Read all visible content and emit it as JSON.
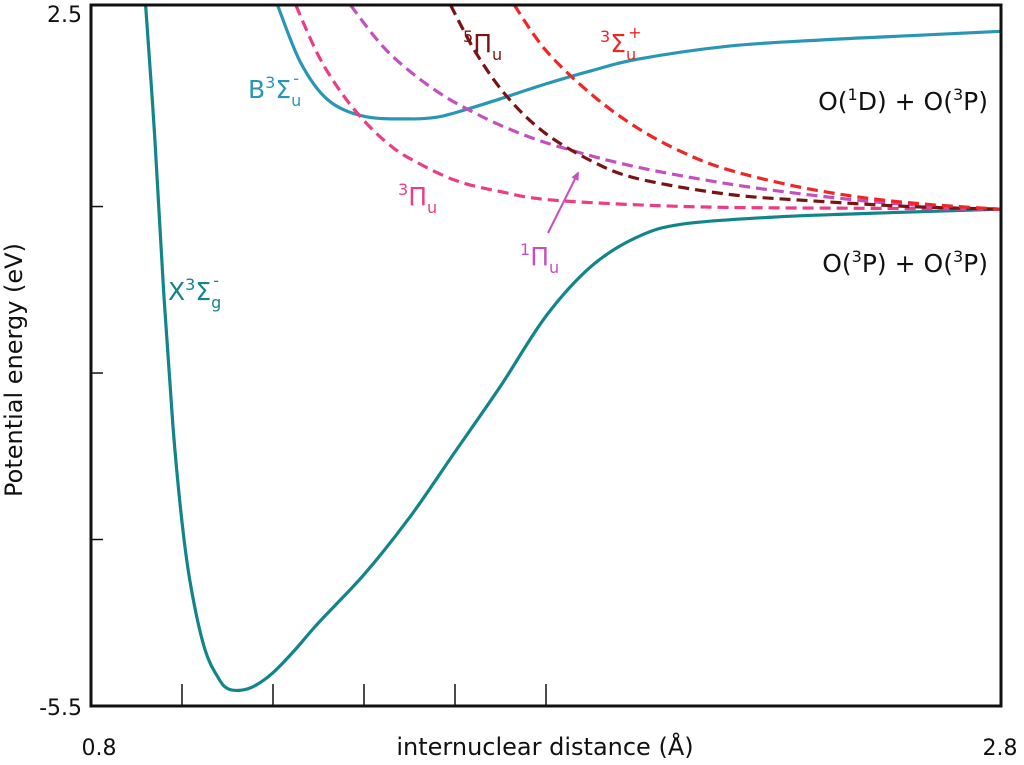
{
  "chart_data": {
    "type": "line",
    "title": "",
    "xlabel": "internuclear distance (Å)",
    "ylabel": "Potential energy (eV)",
    "xlim": [
      0.8,
      2.8
    ],
    "ylim": [
      -5.5,
      2.5
    ],
    "x_tick_labels": [
      "0.8",
      "2.8"
    ],
    "y_tick_labels": [
      "2.5",
      "-5.5"
    ],
    "x_ticks": [
      0.8,
      1.0,
      1.2,
      1.4,
      1.6,
      1.8,
      2.8
    ],
    "y_ticks": [
      -5.5,
      -3.6,
      -1.7,
      0.2,
      2.5
    ],
    "grid": false,
    "series": [
      {
        "name": "X3Σg-",
        "label": {
          "base": "X",
          "sup": "3",
          "sym": "Σ",
          "sub": "g",
          "sup2": "-"
        },
        "color": "#12858a",
        "dashed": false,
        "points": [
          [
            0.92,
            2.5
          ],
          [
            0.94,
            1.0
          ],
          [
            0.96,
            -0.8
          ],
          [
            0.98,
            -2.3
          ],
          [
            1.0,
            -3.4
          ],
          [
            1.02,
            -4.15
          ],
          [
            1.05,
            -4.85
          ],
          [
            1.08,
            -5.18
          ],
          [
            1.1,
            -5.3
          ],
          [
            1.13,
            -5.32
          ],
          [
            1.16,
            -5.27
          ],
          [
            1.2,
            -5.12
          ],
          [
            1.25,
            -4.85
          ],
          [
            1.3,
            -4.55
          ],
          [
            1.4,
            -4.0
          ],
          [
            1.5,
            -3.35
          ],
          [
            1.6,
            -2.6
          ],
          [
            1.7,
            -1.85
          ],
          [
            1.8,
            -1.05
          ],
          [
            1.9,
            -0.48
          ],
          [
            2.0,
            -0.15
          ],
          [
            2.1,
            0.0
          ],
          [
            2.3,
            0.08
          ],
          [
            2.5,
            0.12
          ],
          [
            2.8,
            0.17
          ]
        ]
      },
      {
        "name": "B3Σu-",
        "label": {
          "base": "B",
          "sup": "3",
          "sym": "Σ",
          "sub": "u",
          "sup2": "-"
        },
        "color": "#2a96b5",
        "dashed": false,
        "points": [
          [
            1.21,
            2.5
          ],
          [
            1.26,
            1.85
          ],
          [
            1.32,
            1.42
          ],
          [
            1.4,
            1.23
          ],
          [
            1.5,
            1.2
          ],
          [
            1.56,
            1.22
          ],
          [
            1.62,
            1.3
          ],
          [
            1.7,
            1.43
          ],
          [
            1.8,
            1.6
          ],
          [
            1.9,
            1.75
          ],
          [
            2.0,
            1.88
          ],
          [
            2.2,
            2.03
          ],
          [
            2.4,
            2.1
          ],
          [
            2.6,
            2.15
          ],
          [
            2.8,
            2.2
          ]
        ]
      },
      {
        "name": "3Πu",
        "label": {
          "base": "",
          "sup": "3",
          "sym": "Π",
          "sub": "u",
          "sup2": ""
        },
        "color": "#ec3c85",
        "dashed": true,
        "points": [
          [
            1.25,
            2.5
          ],
          [
            1.3,
            1.92
          ],
          [
            1.35,
            1.5
          ],
          [
            1.4,
            1.18
          ],
          [
            1.45,
            0.93
          ],
          [
            1.5,
            0.75
          ],
          [
            1.6,
            0.5
          ],
          [
            1.7,
            0.37
          ],
          [
            1.8,
            0.28
          ],
          [
            2.0,
            0.22
          ],
          [
            2.2,
            0.19
          ],
          [
            2.5,
            0.18
          ],
          [
            2.8,
            0.17
          ]
        ]
      },
      {
        "name": "1Πu",
        "label": {
          "base": "",
          "sup": "1",
          "sym": "Π",
          "sub": "u",
          "sup2": ""
        },
        "color": "#c64fbf",
        "dashed": true,
        "points": [
          [
            1.37,
            2.5
          ],
          [
            1.45,
            1.98
          ],
          [
            1.55,
            1.55
          ],
          [
            1.65,
            1.25
          ],
          [
            1.75,
            1.02
          ],
          [
            1.85,
            0.85
          ],
          [
            2.0,
            0.65
          ],
          [
            2.2,
            0.46
          ],
          [
            2.4,
            0.32
          ],
          [
            2.6,
            0.22
          ],
          [
            2.8,
            0.17
          ]
        ]
      },
      {
        "name": "5Πu",
        "label": {
          "base": "",
          "sup": "5",
          "sym": "Π",
          "sub": "u",
          "sup2": ""
        },
        "color": "#7a1414",
        "dashed": true,
        "points": [
          [
            1.59,
            2.5
          ],
          [
            1.65,
            1.92
          ],
          [
            1.72,
            1.42
          ],
          [
            1.8,
            1.03
          ],
          [
            1.9,
            0.72
          ],
          [
            2.0,
            0.52
          ],
          [
            2.2,
            0.34
          ],
          [
            2.4,
            0.26
          ],
          [
            2.6,
            0.2
          ],
          [
            2.8,
            0.17
          ]
        ]
      },
      {
        "name": "3Σu+",
        "label": {
          "base": "",
          "sup": "3",
          "sym": "Σ",
          "sub": "u",
          "sup2": "+"
        },
        "color": "#ee2626",
        "dashed": true,
        "points": [
          [
            1.73,
            2.5
          ],
          [
            1.8,
            1.98
          ],
          [
            1.9,
            1.48
          ],
          [
            2.0,
            1.1
          ],
          [
            2.1,
            0.82
          ],
          [
            2.2,
            0.62
          ],
          [
            2.35,
            0.43
          ],
          [
            2.5,
            0.3
          ],
          [
            2.65,
            0.22
          ],
          [
            2.8,
            0.17
          ]
        ]
      }
    ],
    "annotations": [
      {
        "text_pre": "O(",
        "sup1": "1",
        "mid1": "D) + O(",
        "sup2": "3",
        "post": "P)"
      },
      {
        "text_pre": "O(",
        "sup1": "3",
        "mid1": "P) + O(",
        "sup2": "3",
        "post": "P)"
      }
    ]
  }
}
